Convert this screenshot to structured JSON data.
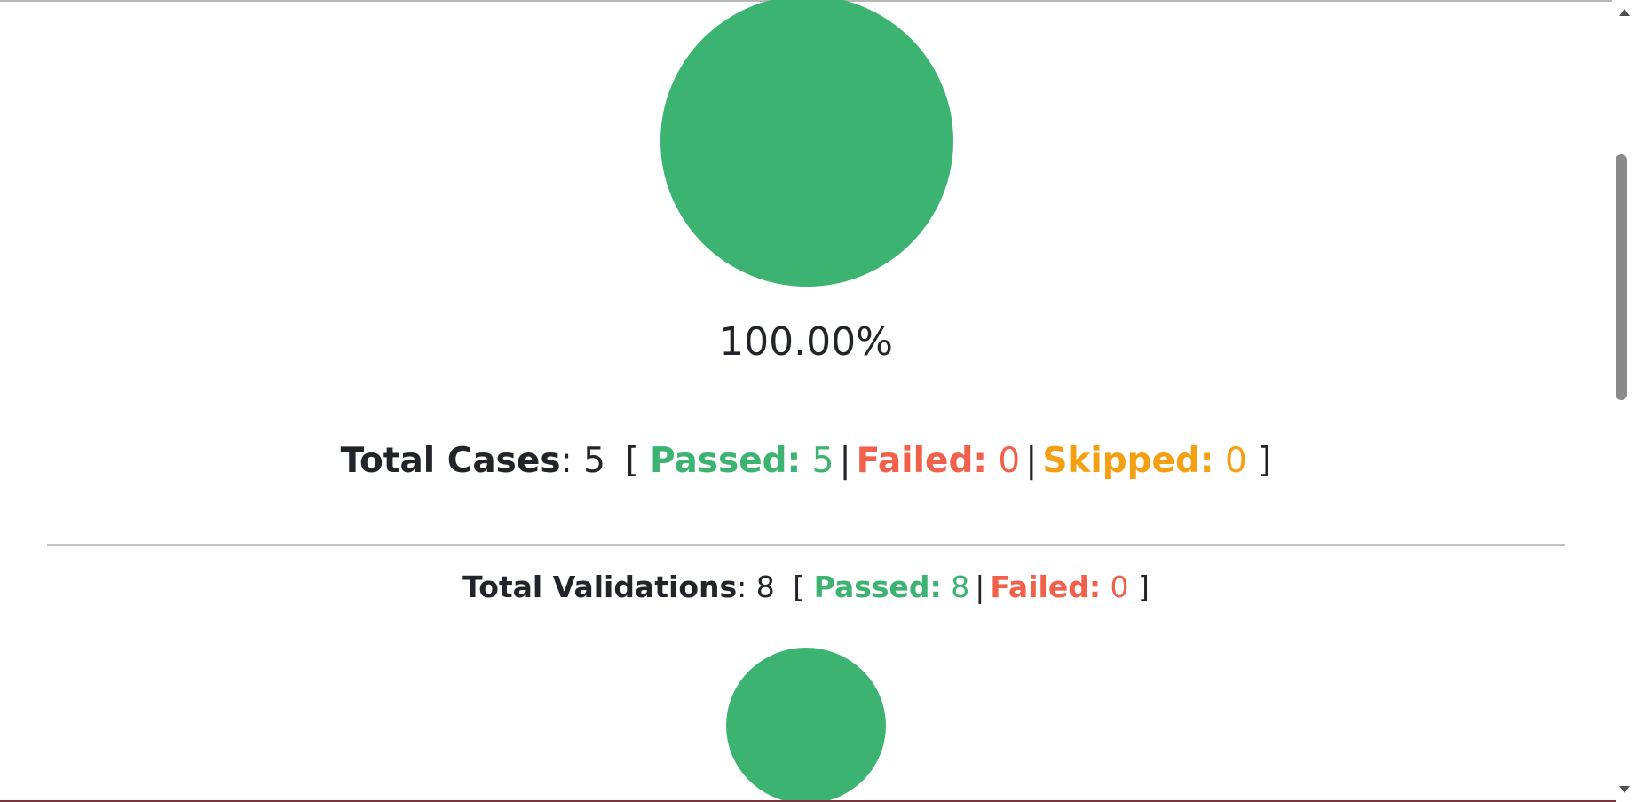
{
  "report": {
    "pass_percentage": "100.00%",
    "cases": {
      "label": "Total Cases",
      "total": "5",
      "passed_label": "Passed:",
      "passed": "5",
      "failed_label": "Failed:",
      "failed": "0",
      "skipped_label": "Skipped:",
      "skipped": "0"
    },
    "validations": {
      "label": "Total Validations",
      "total": "8",
      "passed_label": "Passed:",
      "passed": "8",
      "failed_label": "Failed:",
      "failed": "0"
    }
  },
  "colors": {
    "passed": "#3cb371",
    "failed": "#f0604a",
    "skipped": "#f4a012"
  },
  "scrollbar": {
    "up_icon": "scroll-up-arrow-icon",
    "down_icon": "scroll-down-arrow-icon"
  }
}
